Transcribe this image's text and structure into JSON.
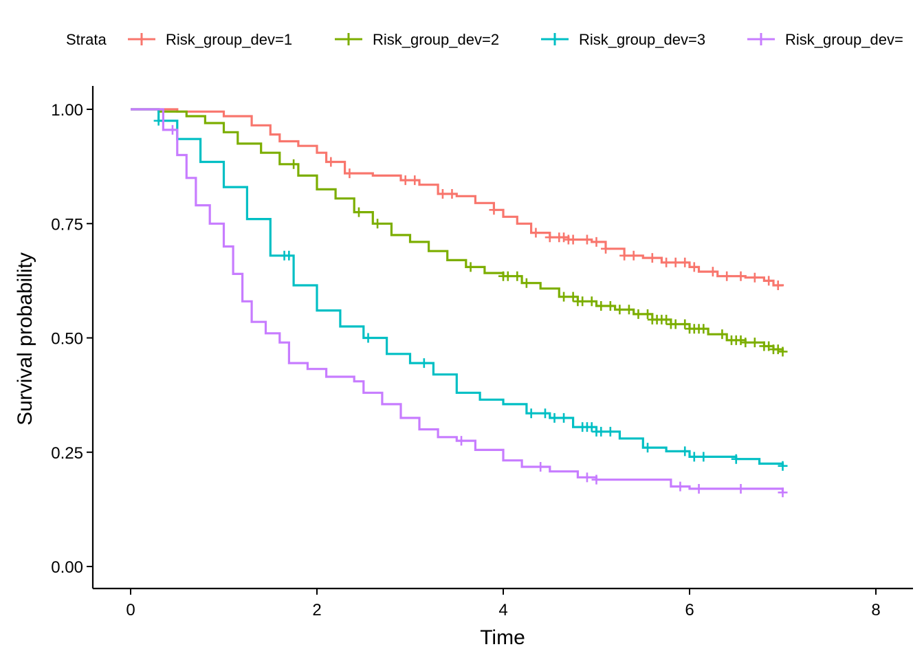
{
  "chart_data": {
    "type": "line",
    "title": "",
    "xlabel": "Time",
    "ylabel": "Survival probability",
    "xlim": [
      0,
      8
    ],
    "ylim": [
      0,
      1
    ],
    "x_ticks": [
      0,
      2,
      4,
      6,
      8
    ],
    "y_ticks": [
      0,
      0.25,
      0.5,
      0.75,
      1.0
    ],
    "x_tick_labels": [
      "0",
      "2",
      "4",
      "6",
      "8"
    ],
    "y_tick_labels": [
      "0.00",
      "0.25",
      "0.50",
      "0.75",
      "1.00"
    ],
    "grid": false,
    "legend": {
      "title": "Strata",
      "placement": "top",
      "entries": [
        "Risk_group_dev=1",
        "Risk_group_dev=2",
        "Risk_group_dev=3",
        "Risk_group_dev="
      ]
    },
    "series": [
      {
        "name": "Risk_group_dev=1",
        "color": "#F8766D",
        "points": [
          [
            0,
            1.0
          ],
          [
            0.5,
            0.995
          ],
          [
            1.0,
            0.985
          ],
          [
            1.3,
            0.965
          ],
          [
            1.5,
            0.945
          ],
          [
            1.6,
            0.93
          ],
          [
            1.8,
            0.92
          ],
          [
            2.0,
            0.905
          ],
          [
            2.1,
            0.885
          ],
          [
            2.3,
            0.86
          ],
          [
            2.6,
            0.855
          ],
          [
            2.9,
            0.845
          ],
          [
            3.1,
            0.835
          ],
          [
            3.3,
            0.815
          ],
          [
            3.5,
            0.81
          ],
          [
            3.7,
            0.795
          ],
          [
            3.9,
            0.78
          ],
          [
            4.0,
            0.765
          ],
          [
            4.15,
            0.75
          ],
          [
            4.3,
            0.73
          ],
          [
            4.5,
            0.72
          ],
          [
            4.7,
            0.715
          ],
          [
            4.95,
            0.71
          ],
          [
            5.1,
            0.695
          ],
          [
            5.3,
            0.68
          ],
          [
            5.5,
            0.675
          ],
          [
            5.7,
            0.665
          ],
          [
            6.0,
            0.655
          ],
          [
            6.1,
            0.645
          ],
          [
            6.3,
            0.635
          ],
          [
            6.6,
            0.632
          ],
          [
            6.8,
            0.625
          ],
          [
            6.9,
            0.615
          ],
          [
            7.0,
            0.613
          ]
        ],
        "censor": [
          2.15,
          2.35,
          2.95,
          3.05,
          3.35,
          3.45,
          3.9,
          4.35,
          4.5,
          4.6,
          4.65,
          4.7,
          4.75,
          4.9,
          5.0,
          5.1,
          5.3,
          5.4,
          5.6,
          5.75,
          5.85,
          5.95,
          6.05,
          6.25,
          6.4,
          6.55,
          6.7,
          6.85,
          6.95
        ]
      },
      {
        "name": "Risk_group_dev=2",
        "color": "#7CAE00",
        "points": [
          [
            0,
            1.0
          ],
          [
            0.3,
            0.995
          ],
          [
            0.6,
            0.985
          ],
          [
            0.8,
            0.97
          ],
          [
            1.0,
            0.95
          ],
          [
            1.15,
            0.925
          ],
          [
            1.4,
            0.905
          ],
          [
            1.6,
            0.88
          ],
          [
            1.8,
            0.855
          ],
          [
            2.0,
            0.825
          ],
          [
            2.2,
            0.805
          ],
          [
            2.4,
            0.775
          ],
          [
            2.6,
            0.75
          ],
          [
            2.8,
            0.725
          ],
          [
            3.0,
            0.71
          ],
          [
            3.2,
            0.69
          ],
          [
            3.4,
            0.67
          ],
          [
            3.6,
            0.655
          ],
          [
            3.8,
            0.642
          ],
          [
            4.0,
            0.635
          ],
          [
            4.2,
            0.62
          ],
          [
            4.4,
            0.608
          ],
          [
            4.6,
            0.59
          ],
          [
            4.8,
            0.58
          ],
          [
            5.0,
            0.57
          ],
          [
            5.2,
            0.562
          ],
          [
            5.4,
            0.552
          ],
          [
            5.6,
            0.54
          ],
          [
            5.8,
            0.53
          ],
          [
            6.0,
            0.52
          ],
          [
            6.2,
            0.508
          ],
          [
            6.4,
            0.495
          ],
          [
            6.6,
            0.49
          ],
          [
            6.8,
            0.482
          ],
          [
            6.9,
            0.475
          ],
          [
            7.0,
            0.47
          ]
        ],
        "censor": [
          1.75,
          2.45,
          2.65,
          3.65,
          4.0,
          4.05,
          4.15,
          4.25,
          4.65,
          4.75,
          4.8,
          4.85,
          4.95,
          5.05,
          5.15,
          5.25,
          5.35,
          5.45,
          5.55,
          5.6,
          5.65,
          5.7,
          5.75,
          5.8,
          5.85,
          5.95,
          6.0,
          6.05,
          6.1,
          6.15,
          6.35,
          6.45,
          6.5,
          6.55,
          6.6,
          6.7,
          6.8,
          6.85,
          6.9,
          6.95,
          7.0
        ]
      },
      {
        "name": "Risk_group_dev=3",
        "color": "#00BFC4",
        "points": [
          [
            0,
            1.0
          ],
          [
            0.15,
            1.0
          ],
          [
            0.3,
            0.975
          ],
          [
            0.5,
            0.935
          ],
          [
            0.75,
            0.885
          ],
          [
            1.0,
            0.83
          ],
          [
            1.25,
            0.76
          ],
          [
            1.5,
            0.68
          ],
          [
            1.75,
            0.615
          ],
          [
            2.0,
            0.56
          ],
          [
            2.25,
            0.525
          ],
          [
            2.5,
            0.5
          ],
          [
            2.75,
            0.465
          ],
          [
            3.0,
            0.445
          ],
          [
            3.25,
            0.42
          ],
          [
            3.5,
            0.38
          ],
          [
            3.75,
            0.365
          ],
          [
            4.0,
            0.355
          ],
          [
            4.25,
            0.335
          ],
          [
            4.5,
            0.325
          ],
          [
            4.75,
            0.305
          ],
          [
            5.0,
            0.295
          ],
          [
            5.25,
            0.28
          ],
          [
            5.5,
            0.26
          ],
          [
            5.75,
            0.252
          ],
          [
            6.0,
            0.24
          ],
          [
            6.5,
            0.235
          ],
          [
            6.75,
            0.225
          ],
          [
            7.0,
            0.22
          ]
        ],
        "censor": [
          0.3,
          1.65,
          1.7,
          2.55,
          3.15,
          4.3,
          4.45,
          4.55,
          4.65,
          4.85,
          4.9,
          4.95,
          5.0,
          5.05,
          5.15,
          5.55,
          5.95,
          6.05,
          6.15,
          6.5,
          7.0
        ]
      },
      {
        "name": "Risk_group_dev=",
        "color": "#C77CFF",
        "points": [
          [
            0,
            1.0
          ],
          [
            0.2,
            1.0
          ],
          [
            0.35,
            0.955
          ],
          [
            0.5,
            0.9
          ],
          [
            0.6,
            0.85
          ],
          [
            0.7,
            0.79
          ],
          [
            0.85,
            0.75
          ],
          [
            1.0,
            0.7
          ],
          [
            1.1,
            0.64
          ],
          [
            1.2,
            0.58
          ],
          [
            1.3,
            0.535
          ],
          [
            1.45,
            0.51
          ],
          [
            1.6,
            0.49
          ],
          [
            1.7,
            0.445
          ],
          [
            1.9,
            0.432
          ],
          [
            2.1,
            0.415
          ],
          [
            2.4,
            0.405
          ],
          [
            2.5,
            0.38
          ],
          [
            2.7,
            0.355
          ],
          [
            2.9,
            0.325
          ],
          [
            3.1,
            0.3
          ],
          [
            3.3,
            0.283
          ],
          [
            3.5,
            0.275
          ],
          [
            3.7,
            0.255
          ],
          [
            4.0,
            0.232
          ],
          [
            4.2,
            0.218
          ],
          [
            4.5,
            0.208
          ],
          [
            4.8,
            0.195
          ],
          [
            5.0,
            0.19
          ],
          [
            5.6,
            0.19
          ],
          [
            5.8,
            0.175
          ],
          [
            6.0,
            0.17
          ],
          [
            7.0,
            0.162
          ]
        ],
        "censor": [
          0.45,
          3.55,
          4.4,
          4.9,
          5.0,
          5.9,
          6.1,
          6.55,
          7.0
        ]
      }
    ]
  }
}
